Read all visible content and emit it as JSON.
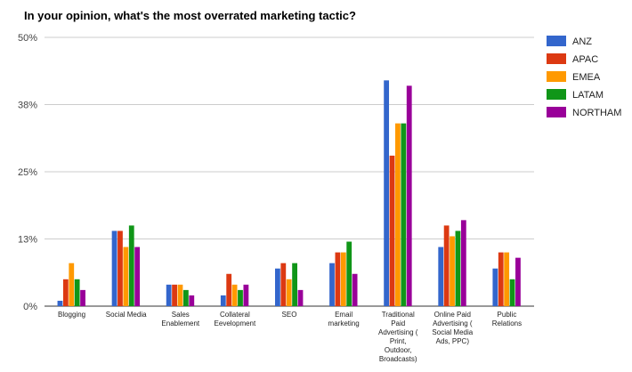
{
  "chart_data": {
    "type": "bar",
    "title": "In your opinion, what's the most overrated marketing tactic?",
    "xlabel": "",
    "ylabel": "",
    "ylim": [
      0,
      50
    ],
    "ytick_values": [
      0,
      12.5,
      25,
      37.5,
      50
    ],
    "ytick_labels": [
      "0%",
      "13%",
      "25%",
      "38%",
      "50%"
    ],
    "grid": true,
    "legend_position": "right",
    "categories": [
      [
        "Blogging"
      ],
      [
        "Social Media"
      ],
      [
        "Sales",
        "Enablement"
      ],
      [
        "Collateral",
        "Eevelopment"
      ],
      [
        "SEO"
      ],
      [
        "Email",
        "marketing"
      ],
      [
        "Traditional",
        "Paid",
        "Advertising (",
        "Print,",
        "Outdoor,",
        "Broadcasts)"
      ],
      [
        "Online Paid",
        "Advertising (",
        "Social Media",
        "Ads, PPC)"
      ],
      [
        "Public",
        "Relations"
      ]
    ],
    "series": [
      {
        "name": "ANZ",
        "color": "#3366cc",
        "values": [
          1,
          14,
          4,
          2,
          7,
          8,
          42,
          11,
          7
        ]
      },
      {
        "name": "APAC",
        "color": "#dc3912",
        "values": [
          5,
          14,
          4,
          6,
          8,
          10,
          28,
          15,
          10
        ]
      },
      {
        "name": "EMEA",
        "color": "#ff9900",
        "values": [
          8,
          11,
          4,
          4,
          5,
          10,
          34,
          13,
          10
        ]
      },
      {
        "name": "LATAM",
        "color": "#109618",
        "values": [
          5,
          15,
          3,
          3,
          8,
          12,
          34,
          14,
          5
        ]
      },
      {
        "name": "NORTHAM",
        "color": "#990099",
        "values": [
          3,
          11,
          2,
          4,
          3,
          6,
          41,
          16,
          9
        ]
      }
    ]
  }
}
